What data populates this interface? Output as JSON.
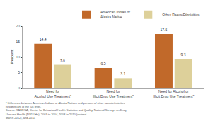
{
  "chart_data": {
    "type": "bar",
    "categories": [
      "Need for\nAlcohol Use Treatment*",
      "Need for\nIllicit Drug Use Treatment*",
      "Need for Alcohol or\nIllicit Drug Use Treatment*"
    ],
    "series": [
      {
        "name": "American Indian or\nAlaska Native",
        "color": "#c1692a",
        "values": [
          14.4,
          6.5,
          17.5
        ]
      },
      {
        "name": "Other Races/Ethnicities",
        "color": "#ddd09a",
        "values": [
          7.6,
          3.1,
          9.3
        ]
      }
    ],
    "ylabel": "Percent",
    "ylim": [
      0,
      20
    ],
    "yticks": [
      0,
      5,
      10,
      15,
      20
    ],
    "grid": false,
    "legend": "upper right",
    "data_labels": true,
    "annotations": [
      "* Difference between American Indians or Alaska Natives and persons of other races/ethnicities is significant at the .05 level.",
      "Source: SAMHSA, Center for Behavioral Health Statistics and Quality, National Surveys on Drug Use and Health (NSDUHs), 2003 to 2004, 2008 to 2010 (revised\n   March 2012), and 2011."
    ]
  }
}
